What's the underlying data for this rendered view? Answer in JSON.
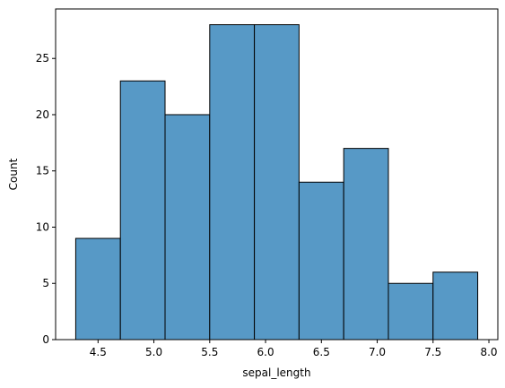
{
  "chart_data": {
    "type": "bar",
    "subtype": "histogram",
    "title": "",
    "xlabel": "sepal_length",
    "ylabel": "Count",
    "bin_edges": [
      4.3,
      4.7,
      5.1,
      5.5,
      5.9,
      6.3,
      6.7,
      7.1,
      7.5,
      7.9
    ],
    "values": [
      9,
      23,
      20,
      28,
      28,
      14,
      17,
      5,
      6
    ],
    "xlim": [
      4.12,
      8.08
    ],
    "ylim": [
      0,
      29.4
    ],
    "xticks": [
      4.5,
      5.0,
      5.5,
      6.0,
      6.5,
      7.0,
      7.5,
      8.0
    ],
    "xtick_labels": [
      "4.5",
      "5.0",
      "5.5",
      "6.0",
      "6.5",
      "7.0",
      "7.5",
      "8.0"
    ],
    "yticks": [
      0,
      5,
      10,
      15,
      20,
      25
    ],
    "ytick_labels": [
      "0",
      "5",
      "10",
      "15",
      "20",
      "25"
    ],
    "grid": false,
    "bar_color": "#5799c6",
    "edge_color": "#000000"
  }
}
